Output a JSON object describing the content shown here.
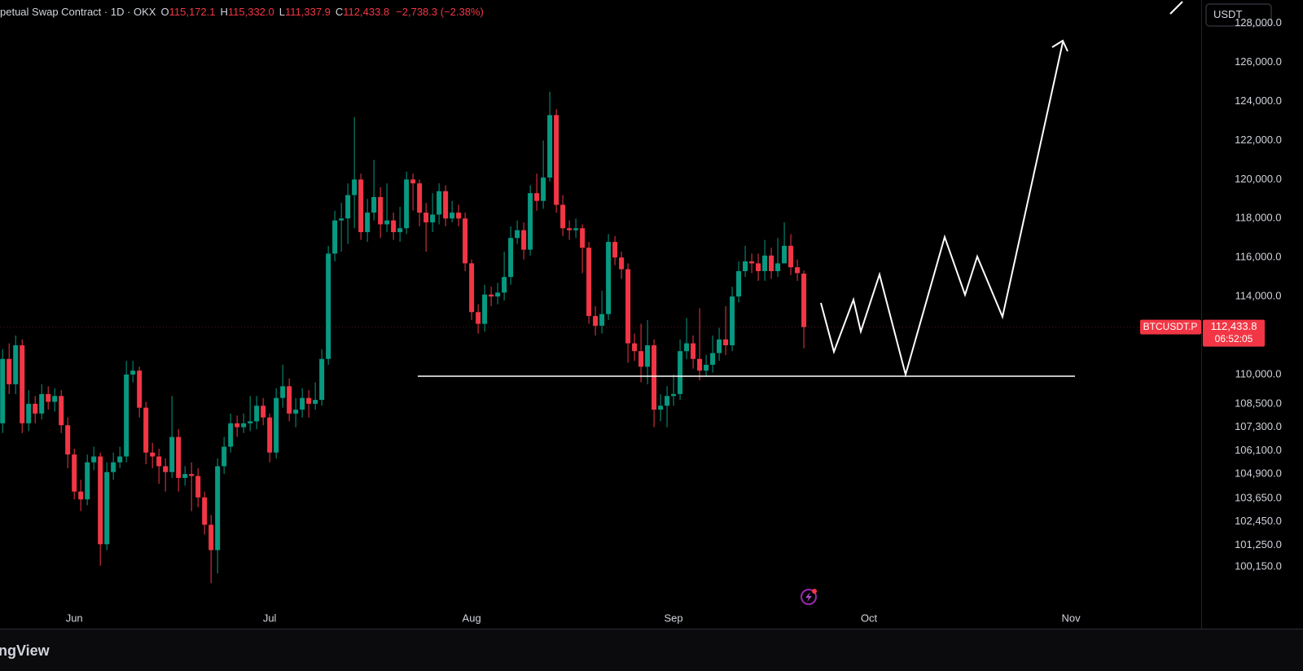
{
  "chart_data": {
    "type": "candlestick",
    "legend": {
      "symbol": "petual Swap Contract · 1D · OKX",
      "fields": [
        {
          "key": "O",
          "label": "115,172.1"
        },
        {
          "key": "H",
          "label": "115,332.0"
        },
        {
          "key": "L",
          "label": "111,337.9"
        },
        {
          "key": "C",
          "label": "112,433.8"
        }
      ],
      "change": "−2,738.3 (−2.38%)"
    },
    "currency": "USDT",
    "last_price": {
      "symbol": "BTCUSDT.P",
      "label": "112,433.8",
      "countdown": "06:52:05"
    },
    "footer": "ngView",
    "up_color": "#089981",
    "down_color": "#f23645",
    "grid": false,
    "xlim": [
      -0.4,
      184
    ],
    "xticks": [
      {
        "value": 11,
        "label": "Jun"
      },
      {
        "value": 41,
        "label": "Jul"
      },
      {
        "value": 72,
        "label": "Aug"
      },
      {
        "value": 103,
        "label": "Sep"
      },
      {
        "value": 133,
        "label": "Oct"
      },
      {
        "value": 164,
        "label": "Nov"
      }
    ],
    "ylim": [
      98100,
      129200
    ],
    "yticks": [
      {
        "value": 100150,
        "label": "100,150.0"
      },
      {
        "value": 101250,
        "label": "101,250.0"
      },
      {
        "value": 102450,
        "label": "102,450.0"
      },
      {
        "value": 103650,
        "label": "103,650.0"
      },
      {
        "value": 104900,
        "label": "104,900.0"
      },
      {
        "value": 106100,
        "label": "106,100.0"
      },
      {
        "value": 107300,
        "label": "107,300.0"
      },
      {
        "value": 108500,
        "label": "108,500.0"
      },
      {
        "value": 110000,
        "label": "110,000.0"
      },
      {
        "value": 114000,
        "label": "114,000.0"
      },
      {
        "value": 116000,
        "label": "116,000.0"
      },
      {
        "value": 118000,
        "label": "118,000.0"
      },
      {
        "value": 120000,
        "label": "120,000.0"
      },
      {
        "value": 122000,
        "label": "122,000.0"
      },
      {
        "value": 124000,
        "label": "124,000.0"
      },
      {
        "value": 126000,
        "label": "126,000.0"
      },
      {
        "value": 128000,
        "label": "128,000.0"
      }
    ],
    "ohlc": [
      [
        107500,
        111300,
        107000,
        110800
      ],
      [
        110800,
        111600,
        109000,
        109500
      ],
      [
        109500,
        112000,
        109000,
        111500
      ],
      [
        111500,
        111800,
        107000,
        107500
      ],
      [
        107500,
        109200,
        107100,
        108500
      ],
      [
        108500,
        108900,
        107500,
        108000
      ],
      [
        108000,
        109500,
        107700,
        109000
      ],
      [
        109000,
        109400,
        108200,
        108600
      ],
      [
        108600,
        109300,
        108100,
        108900
      ],
      [
        108900,
        109200,
        107000,
        107400
      ],
      [
        107400,
        107800,
        105200,
        105900
      ],
      [
        105900,
        106200,
        103600,
        104000
      ],
      [
        104000,
        104600,
        103000,
        103600
      ],
      [
        103600,
        105900,
        103300,
        105500
      ],
      [
        105500,
        106300,
        105100,
        105800
      ],
      [
        105800,
        106000,
        100200,
        101300
      ],
      [
        101300,
        105500,
        101000,
        105000
      ],
      [
        105000,
        106000,
        104600,
        105500
      ],
      [
        105500,
        106300,
        105200,
        105800
      ],
      [
        105800,
        110700,
        105500,
        110000
      ],
      [
        110000,
        110700,
        109600,
        110200
      ],
      [
        110200,
        110400,
        107800,
        108300
      ],
      [
        108300,
        108600,
        105400,
        106000
      ],
      [
        106000,
        106500,
        105200,
        105800
      ],
      [
        105800,
        106200,
        104400,
        105300
      ],
      [
        105300,
        105700,
        104000,
        105000
      ],
      [
        105000,
        108900,
        104700,
        106800
      ],
      [
        106800,
        107200,
        104000,
        104700
      ],
      [
        104700,
        105300,
        104300,
        104900
      ],
      [
        104900,
        105500,
        103000,
        104800
      ],
      [
        104800,
        105200,
        103200,
        103700
      ],
      [
        103700,
        104000,
        101800,
        102300
      ],
      [
        102300,
        102800,
        99300,
        101000
      ],
      [
        101000,
        105700,
        99800,
        105300
      ],
      [
        105300,
        106800,
        104900,
        106300
      ],
      [
        106300,
        108000,
        106000,
        107500
      ],
      [
        107500,
        107900,
        106800,
        107300
      ],
      [
        107300,
        108000,
        107000,
        107500
      ],
      [
        107500,
        108900,
        107100,
        107600
      ],
      [
        107600,
        108900,
        107200,
        108400
      ],
      [
        108400,
        108800,
        107400,
        107800
      ],
      [
        107800,
        108000,
        105500,
        106000
      ],
      [
        106000,
        109300,
        105700,
        108800
      ],
      [
        108800,
        110500,
        108300,
        109400
      ],
      [
        109400,
        109800,
        107600,
        108000
      ],
      [
        108000,
        108800,
        107300,
        108200
      ],
      [
        108200,
        109300,
        107800,
        108800
      ],
      [
        108800,
        109200,
        107800,
        108500
      ],
      [
        108500,
        109600,
        108200,
        108700
      ],
      [
        108700,
        111300,
        108400,
        110800
      ],
      [
        110800,
        116600,
        110500,
        116200
      ],
      [
        116200,
        118400,
        115800,
        117900
      ],
      [
        117900,
        118800,
        116300,
        118000
      ],
      [
        118000,
        119800,
        116700,
        119200
      ],
      [
        119200,
        123200,
        117500,
        120000
      ],
      [
        120000,
        120300,
        116900,
        117300
      ],
      [
        117300,
        119000,
        116800,
        118300
      ],
      [
        118300,
        121000,
        117900,
        119100
      ],
      [
        119100,
        119600,
        117000,
        117700
      ],
      [
        117700,
        119800,
        117300,
        117900
      ],
      [
        117900,
        118300,
        116900,
        117300
      ],
      [
        117300,
        118600,
        116800,
        117500
      ],
      [
        117500,
        120400,
        117200,
        120000
      ],
      [
        120000,
        120300,
        118400,
        119800
      ],
      [
        119800,
        120000,
        117600,
        118300
      ],
      [
        118300,
        118800,
        116300,
        117800
      ],
      [
        117800,
        119300,
        117300,
        118200
      ],
      [
        118200,
        119800,
        117700,
        119400
      ],
      [
        119400,
        119700,
        117600,
        118000
      ],
      [
        118000,
        118900,
        117800,
        118300
      ],
      [
        118300,
        118700,
        117600,
        118000
      ],
      [
        118000,
        118300,
        115300,
        115700
      ],
      [
        115700,
        115900,
        112800,
        113200
      ],
      [
        113200,
        113600,
        112100,
        112600
      ],
      [
        112600,
        114600,
        112200,
        114100
      ],
      [
        114100,
        114500,
        113500,
        114000
      ],
      [
        114000,
        114700,
        113600,
        114200
      ],
      [
        114200,
        116300,
        113800,
        115000
      ],
      [
        115000,
        117600,
        114600,
        117000
      ],
      [
        117000,
        117900,
        116700,
        117400
      ],
      [
        117400,
        117800,
        115900,
        116400
      ],
      [
        116400,
        119700,
        116100,
        119300
      ],
      [
        119300,
        120300,
        118400,
        118900
      ],
      [
        118900,
        122000,
        118500,
        120100
      ],
      [
        120100,
        124500,
        119900,
        123300
      ],
      [
        123300,
        123600,
        118300,
        118700
      ],
      [
        118700,
        119200,
        117100,
        117500
      ],
      [
        117500,
        117900,
        116900,
        117400
      ],
      [
        117400,
        118000,
        117000,
        117500
      ],
      [
        117500,
        117700,
        115200,
        116500
      ],
      [
        116500,
        116800,
        112600,
        113000
      ],
      [
        113000,
        113500,
        112000,
        112500
      ],
      [
        112500,
        114300,
        112100,
        113100
      ],
      [
        113100,
        117200,
        112800,
        116800
      ],
      [
        116800,
        117100,
        115600,
        116000
      ],
      [
        116000,
        116300,
        114900,
        115400
      ],
      [
        115400,
        115700,
        110600,
        111600
      ],
      [
        111600,
        112100,
        110700,
        111200
      ],
      [
        111200,
        112600,
        109600,
        110400
      ],
      [
        110400,
        112800,
        109500,
        111500
      ],
      [
        111500,
        111800,
        107300,
        108200
      ],
      [
        108200,
        109000,
        107600,
        108400
      ],
      [
        108400,
        109400,
        107300,
        108900
      ],
      [
        108900,
        110000,
        108400,
        109000
      ],
      [
        109000,
        111800,
        108700,
        111200
      ],
      [
        111200,
        112900,
        110800,
        111600
      ],
      [
        111600,
        112000,
        110300,
        110800
      ],
      [
        110800,
        113400,
        109700,
        110200
      ],
      [
        110200,
        111000,
        109900,
        110500
      ],
      [
        110500,
        112000,
        110100,
        111100
      ],
      [
        111100,
        112400,
        110700,
        111800
      ],
      [
        111800,
        113500,
        111000,
        111500
      ],
      [
        111500,
        114500,
        111200,
        114000
      ],
      [
        114000,
        115800,
        113700,
        115300
      ],
      [
        115300,
        116600,
        115000,
        115800
      ],
      [
        115800,
        116200,
        115200,
        115700
      ],
      [
        115700,
        116200,
        114800,
        115300
      ],
      [
        115300,
        116900,
        114800,
        116100
      ],
      [
        116100,
        116500,
        114900,
        115300
      ],
      [
        115300,
        117000,
        115000,
        115700
      ],
      [
        115700,
        117800,
        115900,
        116600
      ],
      [
        116600,
        117200,
        115100,
        115500
      ],
      [
        115500,
        115900,
        114800,
        115200
      ],
      [
        115172.1,
        115332.0,
        111337.9,
        112433.8
      ]
    ]
  }
}
